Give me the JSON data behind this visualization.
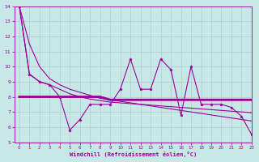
{
  "xlabel": "Windchill (Refroidissement éolien,°C)",
  "x": [
    0,
    1,
    2,
    3,
    4,
    5,
    6,
    7,
    8,
    9,
    10,
    11,
    12,
    13,
    14,
    15,
    16,
    17,
    18,
    19,
    20,
    21,
    22,
    23
  ],
  "y_main": [
    14,
    9.5,
    9.0,
    8.8,
    8.0,
    5.8,
    6.5,
    7.5,
    7.5,
    7.5,
    8.5,
    10.5,
    8.5,
    8.5,
    10.5,
    9.8,
    6.8,
    10.0,
    7.5,
    7.5,
    7.5,
    7.3,
    6.7,
    5.5
  ],
  "y_flat": [
    8.0,
    8.0,
    8.0,
    8.0,
    8.0,
    8.0,
    8.0,
    8.0,
    8.0,
    7.8,
    7.8,
    7.8,
    7.8,
    7.8,
    7.8,
    7.8,
    7.8,
    7.8,
    7.8,
    7.8,
    7.8,
    7.8,
    7.8,
    7.8
  ],
  "y_decline1": [
    14,
    9.5,
    9.0,
    8.8,
    8.5,
    8.2,
    8.0,
    7.85,
    7.75,
    7.65,
    7.6,
    7.55,
    7.5,
    7.45,
    7.4,
    7.35,
    7.3,
    7.25,
    7.2,
    7.15,
    7.1,
    7.05,
    7.0,
    6.95
  ],
  "y_decline2": [
    14,
    11.5,
    10.0,
    9.2,
    8.8,
    8.5,
    8.3,
    8.1,
    7.9,
    7.8,
    7.7,
    7.6,
    7.5,
    7.4,
    7.3,
    7.2,
    7.1,
    7.0,
    6.9,
    6.8,
    6.7,
    6.6,
    6.5,
    6.4
  ],
  "line_color": "#990099",
  "bg_color": "#c8e8e8",
  "grid_color": "#aacece",
  "ylim": [
    5,
    14
  ],
  "xlim": [
    -0.5,
    23
  ]
}
